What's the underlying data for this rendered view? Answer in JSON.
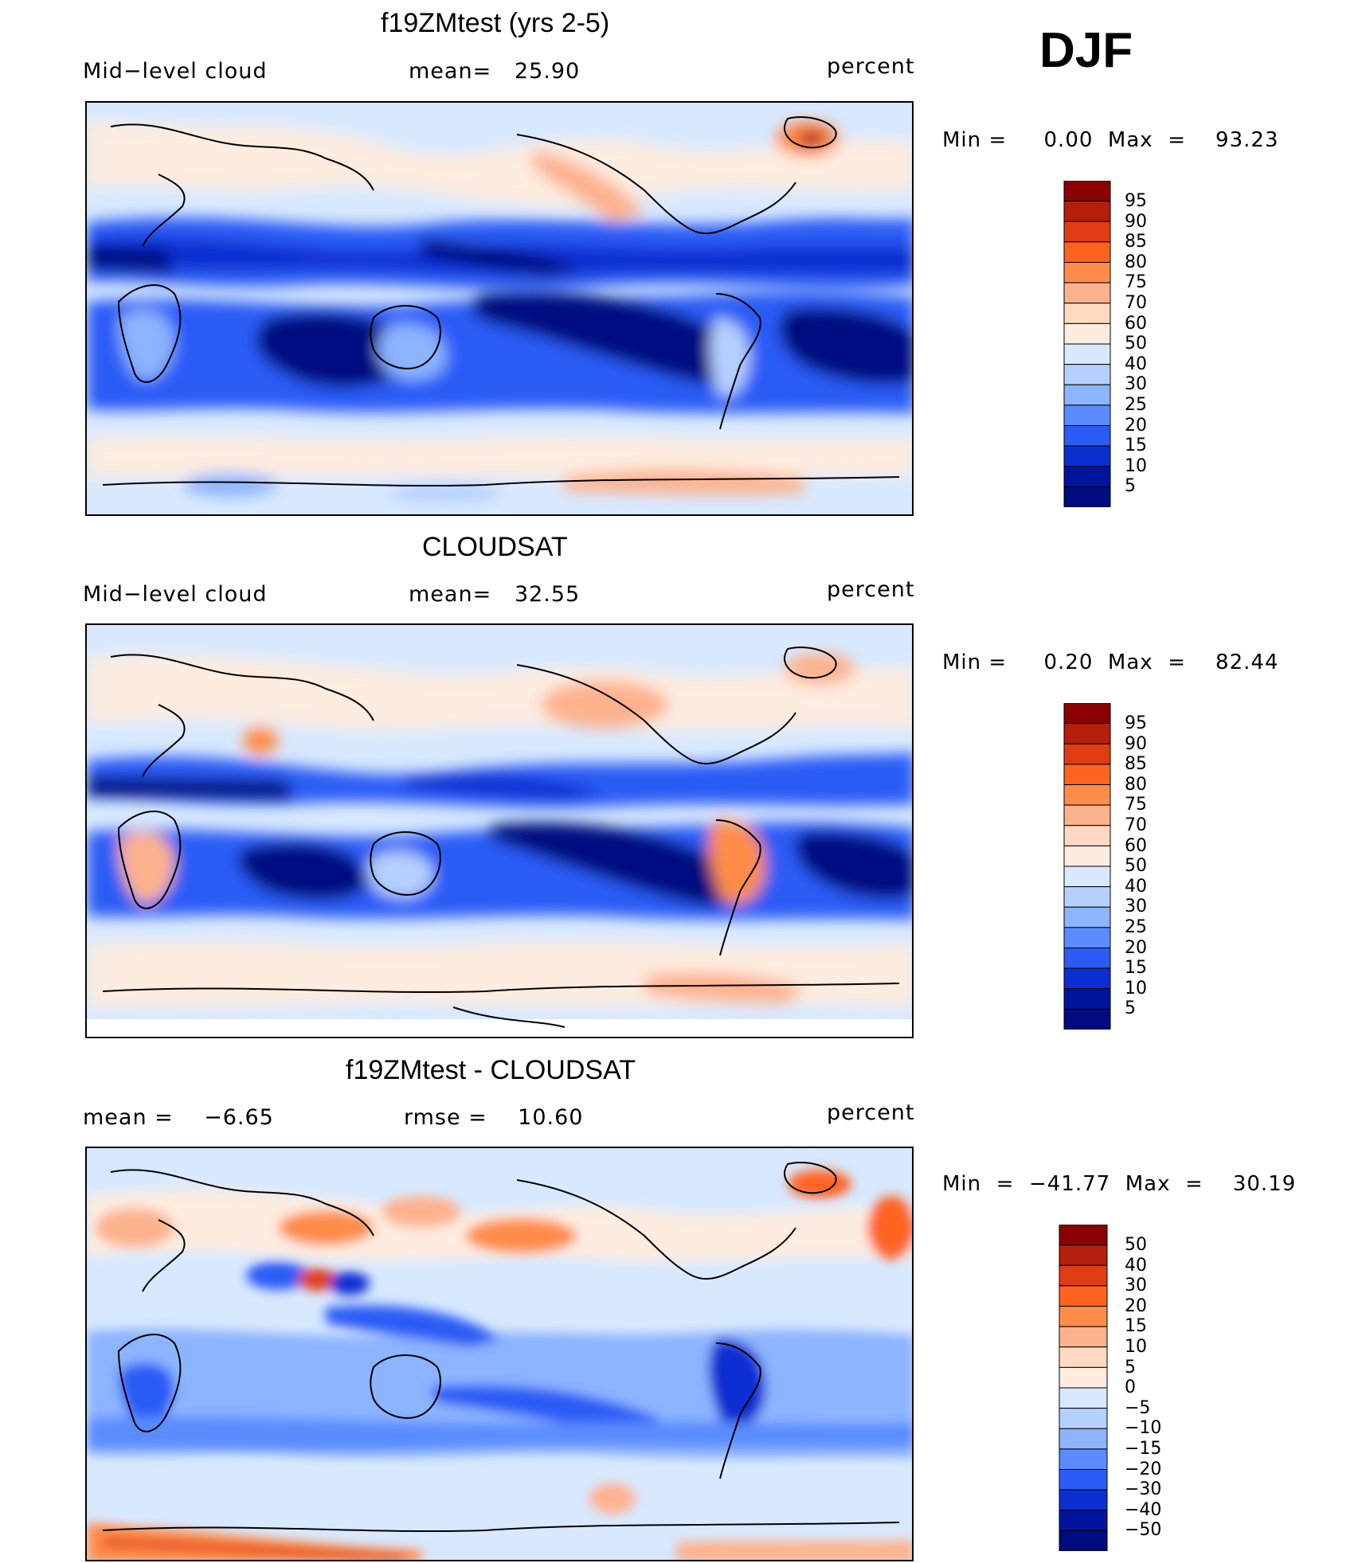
{
  "season": "DJF",
  "panels": [
    {
      "id": "model",
      "title": "f19ZMtest (yrs 2-5)",
      "left_label": "Mid−level cloud",
      "center_label": "mean=   25.90",
      "units": "percent",
      "stats": "Min =     0.00  Max  =    93.23",
      "colorbar": [
        "95",
        "90",
        "85",
        "80",
        "75",
        "70",
        "60",
        "50",
        "40",
        "30",
        "25",
        "20",
        "15",
        "10",
        "5"
      ]
    },
    {
      "id": "obs",
      "title": "CLOUDSAT",
      "left_label": "Mid−level cloud",
      "center_label": "mean=   32.55",
      "units": "percent",
      "stats": "Min =     0.20  Max  =    82.44",
      "colorbar": [
        "95",
        "90",
        "85",
        "80",
        "75",
        "70",
        "60",
        "50",
        "40",
        "30",
        "25",
        "20",
        "15",
        "10",
        "5"
      ]
    },
    {
      "id": "diff",
      "title": "f19ZMtest - CLOUDSAT",
      "left_label": "mean =    −6.65",
      "center_label": "rmse =    10.60",
      "units": "percent",
      "stats": "Min  =  −41.77  Max  =    30.19",
      "colorbar": [
        "50",
        "40",
        "30",
        "20",
        "15",
        "10",
        "5",
        "0",
        "−5",
        "−10",
        "−15",
        "−20",
        "−30",
        "−40",
        "−50"
      ]
    }
  ],
  "colors": {
    "abs_scale": [
      "#8b0000",
      "#b41e0a",
      "#e03c13",
      "#fe6420",
      "#ff8c4a",
      "#fdb28e",
      "#ffd9c2",
      "#fdece0",
      "#d8e9ff",
      "#b5d0ff",
      "#8cb4ff",
      "#5a8cff",
      "#2a5cf5",
      "#0c2fd2",
      "#00149e",
      "#000c80"
    ],
    "diff_scale": [
      "#8b0000",
      "#b41e0a",
      "#e03c13",
      "#fe6420",
      "#ff8c4a",
      "#fdb28e",
      "#ffd9c2",
      "#fdece0",
      "#d8e9ff",
      "#b5d0ff",
      "#8cb4ff",
      "#5a8cff",
      "#2a5cf5",
      "#0c2fd2",
      "#00149e",
      "#000c80"
    ]
  }
}
